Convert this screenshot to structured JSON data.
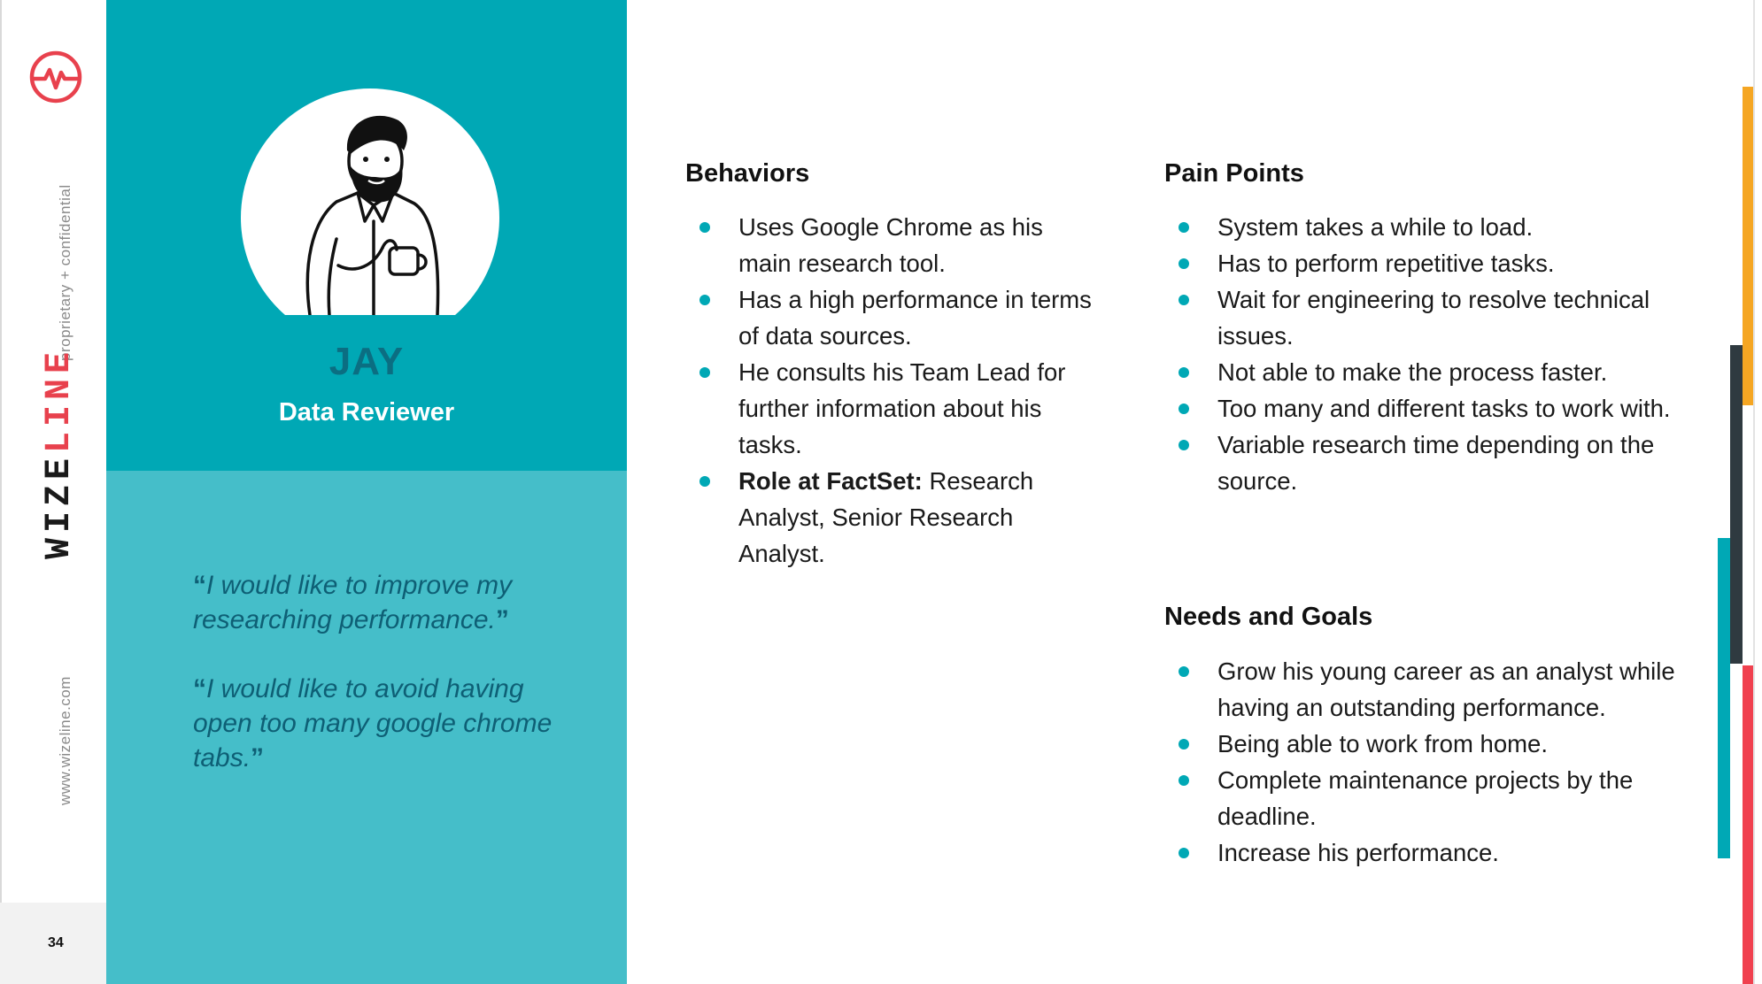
{
  "brand": {
    "confidential": "proprietary + confidential",
    "logo_word_1": "WIZE",
    "logo_word_2": "LINE",
    "url": "www.wizeline.com",
    "page_number": "34",
    "accent_colors": {
      "teal": "#00a8b5",
      "red": "#e8414d",
      "yellow": "#f5a623",
      "dark": "#2f3a40"
    }
  },
  "persona": {
    "name": "JAY",
    "role": "Data Reviewer",
    "quotes": [
      {
        "open": "“",
        "text": "I would like to improve my researching performance.",
        "close": "”"
      },
      {
        "open": "“",
        "text": "I would like to avoid having open too many google chrome tabs.",
        "close": "”"
      }
    ]
  },
  "behaviors": {
    "title": "Behaviors",
    "items": [
      "Uses Google Chrome as his main research tool.",
      "Has a high performance in terms of data sources.",
      "He consults his Team Lead for further information about his tasks.",
      {
        "bold": "Role at FactSet:",
        "text": " Research Analyst, Senior Research Analyst."
      }
    ]
  },
  "pain_points": {
    "title": "Pain Points",
    "items": [
      "System takes a while to load.",
      "Has to perform repetitive tasks.",
      "Wait for engineering to resolve technical issues.",
      "Not able to make the process faster.",
      "Too many and different tasks to work with.",
      "Variable research time depending on the source."
    ]
  },
  "needs_goals": {
    "title": "Needs and Goals",
    "items": [
      "Grow his young career as an analyst while having an outstanding performance.",
      "Being able to work from home.",
      "Complete maintenance projects by the deadline.",
      "Increase his performance."
    ]
  }
}
